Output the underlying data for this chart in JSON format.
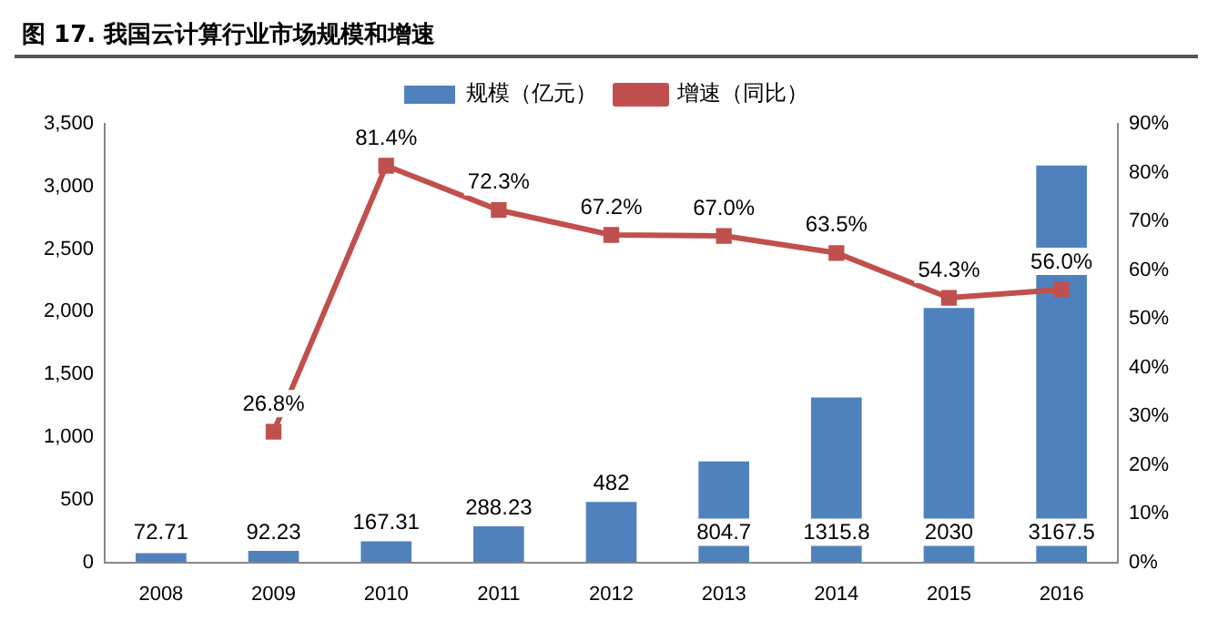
{
  "chart_data": {
    "type": "bar",
    "title": "图 17. 我国云计算行业市场规模和增速",
    "categories": [
      "2008",
      "2009",
      "2010",
      "2011",
      "2012",
      "2013",
      "2014",
      "2015",
      "2016"
    ],
    "series": [
      {
        "name": "规模（亿元）",
        "color": "#4f81bd",
        "values": [
          72.71,
          92.23,
          167.31,
          288.23,
          482,
          804.7,
          1315.8,
          2030,
          3167.5
        ],
        "value_labels": [
          "72.71",
          "92.23",
          "167.31",
          "288.23",
          "482",
          "804.7",
          "1315.8",
          "2030",
          "3167.5"
        ]
      },
      {
        "name": "增速（同比）",
        "type": "line",
        "axis": "y2",
        "color": "#c0504d",
        "marker": "square",
        "values": [
          null,
          26.8,
          81.4,
          72.3,
          67.2,
          67.0,
          63.5,
          54.3,
          56.0
        ],
        "value_labels": [
          null,
          "26.8%",
          "81.4%",
          "72.3%",
          "67.2%",
          "67.0%",
          "63.5%",
          "54.3%",
          "56.0%"
        ]
      }
    ],
    "ylim": [
      0,
      3500
    ],
    "yticks": [
      0,
      {
        "value": 500,
        "label": "500"
      },
      {
        "value": 1000,
        "label": "1,000"
      },
      {
        "value": 1500,
        "label": "1,500"
      },
      {
        "value": 2000,
        "label": "2,000"
      },
      {
        "value": 2500,
        "label": "2,500"
      },
      {
        "value": 3000,
        "label": "3,000"
      },
      {
        "value": 3500,
        "label": "3,500"
      }
    ],
    "y2lim": [
      0,
      90
    ],
    "y2ticks": [
      {
        "value": 0,
        "label": "0%"
      },
      {
        "value": 10,
        "label": "10%"
      },
      {
        "value": 20,
        "label": "20%"
      },
      {
        "value": 30,
        "label": "30%"
      },
      {
        "value": 40,
        "label": "40%"
      },
      {
        "value": 50,
        "label": "50%"
      },
      {
        "value": 60,
        "label": "60%"
      },
      {
        "value": 70,
        "label": "70%"
      },
      {
        "value": 80,
        "label": "80%"
      },
      {
        "value": 90,
        "label": "90%"
      }
    ],
    "grid": false,
    "legend": "top"
  }
}
